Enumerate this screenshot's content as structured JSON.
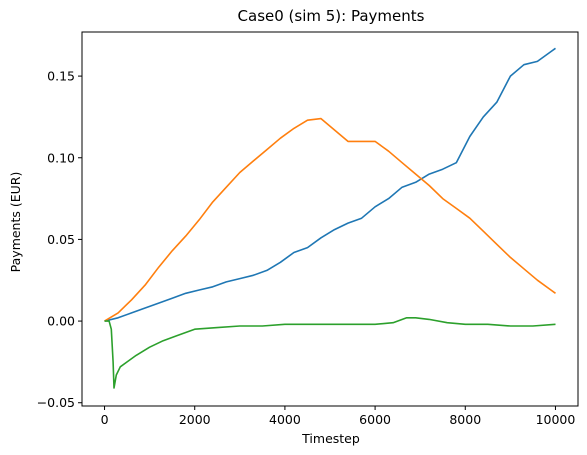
{
  "chart_data": {
    "type": "line",
    "title": "Case0 (sim 5): Payments",
    "xlabel": "Timestep",
    "ylabel": "Payments (EUR)",
    "xlim": [
      -500,
      10500
    ],
    "ylim": [
      -0.052,
      0.177
    ],
    "xticks": [
      0,
      2000,
      4000,
      6000,
      8000,
      10000
    ],
    "xtick_labels": [
      "0",
      "2000",
      "4000",
      "6000",
      "8000",
      "10000"
    ],
    "yticks": [
      -0.05,
      0.0,
      0.05,
      0.1,
      0.15
    ],
    "ytick_labels": [
      "−0.05",
      "0.00",
      "0.05",
      "0.10",
      "0.15"
    ],
    "grid": false,
    "legend": "none",
    "series": [
      {
        "color": "#1f77b4",
        "x": [
          0,
          300,
          600,
          900,
          1200,
          1500,
          1800,
          2100,
          2400,
          2700,
          3000,
          3300,
          3600,
          3900,
          4200,
          4500,
          4800,
          5100,
          5400,
          5700,
          6000,
          6300,
          6600,
          6900,
          7200,
          7500,
          7800,
          8100,
          8400,
          8700,
          9000,
          9300,
          9600,
          9900,
          10000
        ],
        "y": [
          0.0,
          0.002,
          0.005,
          0.008,
          0.011,
          0.014,
          0.017,
          0.019,
          0.021,
          0.024,
          0.026,
          0.028,
          0.031,
          0.036,
          0.042,
          0.045,
          0.051,
          0.056,
          0.06,
          0.063,
          0.07,
          0.075,
          0.082,
          0.085,
          0.09,
          0.093,
          0.097,
          0.113,
          0.125,
          0.134,
          0.15,
          0.157,
          0.159,
          0.165,
          0.167
        ]
      },
      {
        "color": "#ff7f0e",
        "x": [
          0,
          300,
          600,
          900,
          1200,
          1500,
          1800,
          2100,
          2400,
          2700,
          3000,
          3300,
          3600,
          3900,
          4200,
          4500,
          4800,
          5100,
          5400,
          5700,
          6000,
          6300,
          6600,
          6900,
          7200,
          7500,
          7800,
          8100,
          8400,
          8700,
          9000,
          9300,
          9600,
          9900,
          10000
        ],
        "y": [
          0.0,
          0.005,
          0.013,
          0.022,
          0.033,
          0.043,
          0.052,
          0.062,
          0.073,
          0.082,
          0.091,
          0.098,
          0.105,
          0.112,
          0.118,
          0.123,
          0.124,
          0.117,
          0.11,
          0.11,
          0.11,
          0.104,
          0.097,
          0.09,
          0.083,
          0.075,
          0.069,
          0.063,
          0.055,
          0.047,
          0.039,
          0.032,
          0.025,
          0.019,
          0.017
        ]
      },
      {
        "color": "#2ca02c",
        "x": [
          0,
          100,
          150,
          190,
          210,
          260,
          350,
          500,
          700,
          1000,
          1300,
          1600,
          2000,
          2500,
          3000,
          3500,
          4000,
          4500,
          5000,
          5500,
          6000,
          6400,
          6700,
          6900,
          7200,
          7600,
          8000,
          8500,
          9000,
          9500,
          10000
        ],
        "y": [
          0.0,
          0.0,
          -0.005,
          -0.025,
          -0.041,
          -0.033,
          -0.028,
          -0.025,
          -0.021,
          -0.016,
          -0.012,
          -0.009,
          -0.005,
          -0.004,
          -0.003,
          -0.003,
          -0.002,
          -0.002,
          -0.002,
          -0.002,
          -0.002,
          -0.001,
          0.002,
          0.002,
          0.001,
          -0.001,
          -0.002,
          -0.002,
          -0.003,
          -0.003,
          -0.002
        ]
      }
    ]
  }
}
